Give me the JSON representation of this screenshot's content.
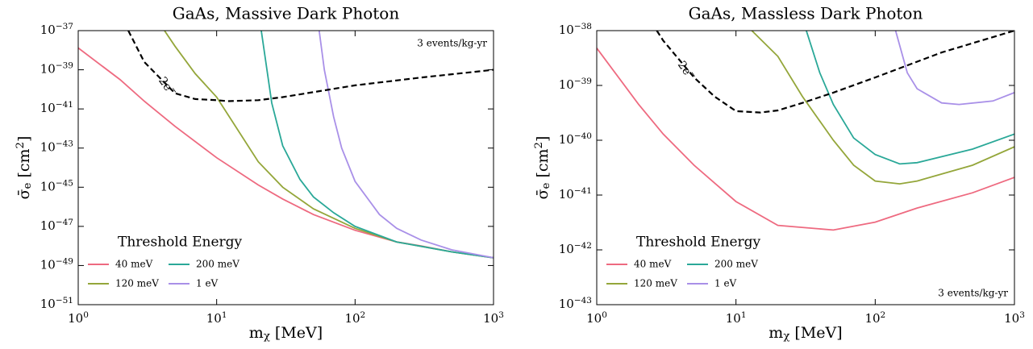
{
  "chart_data": [
    {
      "type": "line",
      "title": "GaAs, Massive Dark Photon",
      "xlabel": "m_{χ} [MeV]",
      "ylabel": "σ̄_{e} [cm^{2}]",
      "xscale": "log",
      "yscale": "log",
      "xlim": [
        1,
        1000
      ],
      "ylim": [
        1e-51,
        1e-37
      ],
      "xticks": [
        {
          "value": 1,
          "label": "10^{0}"
        },
        {
          "value": 10,
          "label": "10^{1}"
        },
        {
          "value": 100,
          "label": "10^{2}"
        },
        {
          "value": 1000,
          "label": "10^{3}"
        }
      ],
      "yticks": [
        {
          "value": 1e-51,
          "label": "10^{−51}"
        },
        {
          "value": 1e-49,
          "label": "10^{−49}"
        },
        {
          "value": 1e-47,
          "label": "10^{−47}"
        },
        {
          "value": 1e-45,
          "label": "10^{−45}"
        },
        {
          "value": 1e-43,
          "label": "10^{−43}"
        },
        {
          "value": 1e-41,
          "label": "10^{−41}"
        },
        {
          "value": 1e-39,
          "label": "10^{−39}"
        },
        {
          "value": 1e-37,
          "label": "10^{−37}"
        }
      ],
      "legend_title": "Threshold Energy",
      "legend_loc": "lower left",
      "annotations": [
        {
          "text": "3 events/kg-yr",
          "loc": "upper right"
        }
      ],
      "series": [
        {
          "name": "40 meV",
          "color": "#ee6a80",
          "x": [
            1,
            2,
            3,
            5,
            10,
            20,
            30,
            50,
            100,
            200,
            300,
            500,
            1000
          ],
          "values": [
            1.3e-38,
            3.2e-40,
            2.5e-41,
            1.3e-42,
            3.2e-44,
            1.3e-45,
            2.5e-46,
            4e-47,
            6.3e-48,
            1.6e-48,
            1e-48,
            5e-49,
            2.5e-49
          ]
        },
        {
          "name": "120 meV",
          "color": "#94a63a",
          "x": [
            4.2,
            5,
            7,
            10,
            20,
            30,
            50,
            100,
            200,
            500,
            1000
          ],
          "values": [
            1e-37,
            1.6e-38,
            6.3e-40,
            4e-41,
            2e-44,
            1e-45,
            7.9e-47,
            7.9e-48,
            1.6e-48,
            5e-49,
            2.5e-49
          ]
        },
        {
          "name": "200 meV",
          "color": "#2aa898",
          "x": [
            21,
            25,
            30,
            40,
            50,
            70,
            100,
            200,
            500,
            1000
          ],
          "values": [
            1e-37,
            2e-41,
            1.3e-43,
            2.5e-45,
            3.2e-46,
            5e-47,
            1e-47,
            1.6e-48,
            5e-49,
            2.5e-49
          ]
        },
        {
          "name": "1 eV",
          "color": "#a990e8",
          "x": [
            55,
            60,
            70,
            80,
            100,
            150,
            200,
            300,
            500,
            1000
          ],
          "values": [
            1e-37,
            1e-39,
            4e-42,
            1e-43,
            2e-45,
            4e-47,
            7.9e-48,
            2e-48,
            6.3e-49,
            2.5e-49
          ]
        },
        {
          "label": "2e^{−}",
          "color": "#000000",
          "linestyle": "dashed",
          "x": [
            2.3,
            3,
            5,
            7,
            10,
            12,
            20,
            30,
            100,
            300,
            1000
          ],
          "values": [
            1e-37,
            2.5e-39,
            6.3e-41,
            3.2e-41,
            2.8e-41,
            2.5e-41,
            2.8e-41,
            4e-41,
            1.6e-40,
            4e-40,
            1e-39
          ]
        }
      ]
    },
    {
      "type": "line",
      "title": "GaAs, Massless Dark Photon",
      "xlabel": "m_{χ} [MeV]",
      "ylabel": "σ̄_{e} [cm^{2}]",
      "xscale": "log",
      "yscale": "log",
      "xlim": [
        1,
        1000
      ],
      "ylim": [
        1e-43,
        1e-38
      ],
      "xticks": [
        {
          "value": 1,
          "label": "10^{0}"
        },
        {
          "value": 10,
          "label": "10^{1}"
        },
        {
          "value": 100,
          "label": "10^{2}"
        },
        {
          "value": 1000,
          "label": "10^{3}"
        }
      ],
      "yticks": [
        {
          "value": 1e-43,
          "label": "10^{−43}"
        },
        {
          "value": 1e-42,
          "label": "10^{−42}"
        },
        {
          "value": 1e-41,
          "label": "10^{−41}"
        },
        {
          "value": 1e-40,
          "label": "10^{−40}"
        },
        {
          "value": 1e-39,
          "label": "10^{−39}"
        },
        {
          "value": 1e-38,
          "label": "10^{−38}"
        }
      ],
      "legend_title": "Threshold Energy",
      "legend_loc": "lower left",
      "annotations": [
        {
          "text": "3 events/kg-yr",
          "loc": "lower right"
        }
      ],
      "series": [
        {
          "name": "40 meV",
          "color": "#ee6a80",
          "x": [
            1,
            2,
            3,
            5,
            10,
            20,
            50,
            100,
            200,
            500,
            1000
          ],
          "values": [
            4.8e-39,
            4.5e-40,
            1.3e-40,
            3.5e-41,
            7.6e-42,
            2.8e-42,
            2.3e-42,
            3.2e-42,
            5.8e-42,
            1.1e-41,
            2.1e-41
          ]
        },
        {
          "name": "120 meV",
          "color": "#94a63a",
          "x": [
            13,
            20,
            30,
            50,
            70,
            100,
            150,
            200,
            500,
            1000
          ],
          "values": [
            1e-38,
            3.4e-39,
            6.3e-40,
            1e-40,
            3.5e-41,
            1.8e-41,
            1.6e-41,
            1.8e-41,
            3.5e-41,
            7.6e-41
          ]
        },
        {
          "name": "200 meV",
          "color": "#2aa898",
          "x": [
            32,
            40,
            50,
            70,
            100,
            150,
            200,
            500,
            1000
          ],
          "values": [
            1e-38,
            1.7e-39,
            4.5e-40,
            1.1e-40,
            5.5e-41,
            3.7e-41,
            3.9e-41,
            6.9e-41,
            1.3e-40
          ]
        },
        {
          "name": "1 eV",
          "color": "#a990e8",
          "x": [
            140,
            170,
            200,
            300,
            400,
            700,
            1000
          ],
          "values": [
            1e-38,
            1.7e-39,
            8.7e-40,
            4.8e-40,
            4.5e-40,
            5.2e-40,
            7.4e-40
          ]
        },
        {
          "label": "2e^{−}",
          "color": "#000000",
          "linestyle": "dashed",
          "x": [
            2.7,
            3,
            5,
            7,
            10,
            15,
            20,
            30,
            50,
            100,
            300,
            1000
          ],
          "values": [
            1e-38,
            6.6e-39,
            1.4e-39,
            6.3e-40,
            3.4e-40,
            3.2e-40,
            3.5e-40,
            4.8e-40,
            7.4e-40,
            1.4e-39,
            4e-39,
            1e-38
          ]
        }
      ]
    }
  ]
}
